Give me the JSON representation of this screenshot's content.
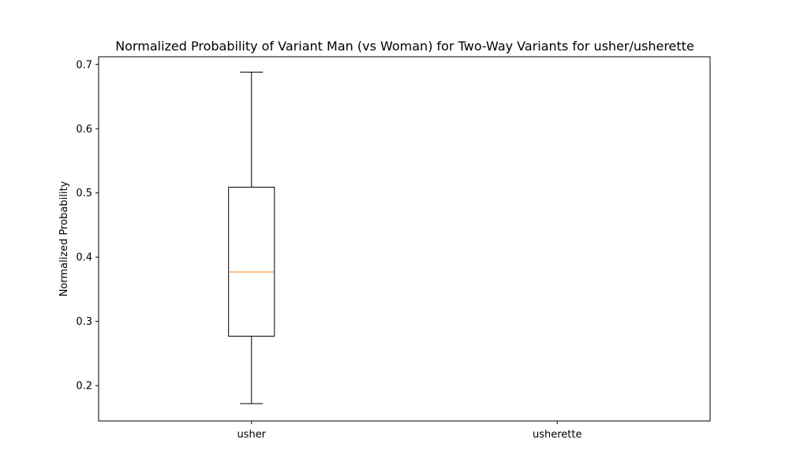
{
  "chart_data": {
    "type": "box",
    "title": "Normalized Probability of Variant Man (vs Woman) for Two-Way Variants for usher/usherette",
    "xlabel": "",
    "ylabel": "Normalized Probability",
    "categories": [
      "usher",
      "usherette"
    ],
    "boxes": [
      {
        "category": "usher",
        "whisker_low": 0.172,
        "q1": 0.277,
        "median": 0.377,
        "q3": 0.509,
        "whisker_high": 0.688
      },
      {
        "category": "usherette",
        "empty": true
      }
    ],
    "ylim": [
      0.145,
      0.712
    ],
    "yticks": [
      0.2,
      0.3,
      0.4,
      0.5,
      0.6,
      0.7
    ],
    "ytick_labels": [
      "0.2",
      "0.3",
      "0.4",
      "0.5",
      "0.6",
      "0.7"
    ],
    "grid": false,
    "colors": {
      "box": "#000000",
      "median": "#ff7f0e"
    }
  }
}
